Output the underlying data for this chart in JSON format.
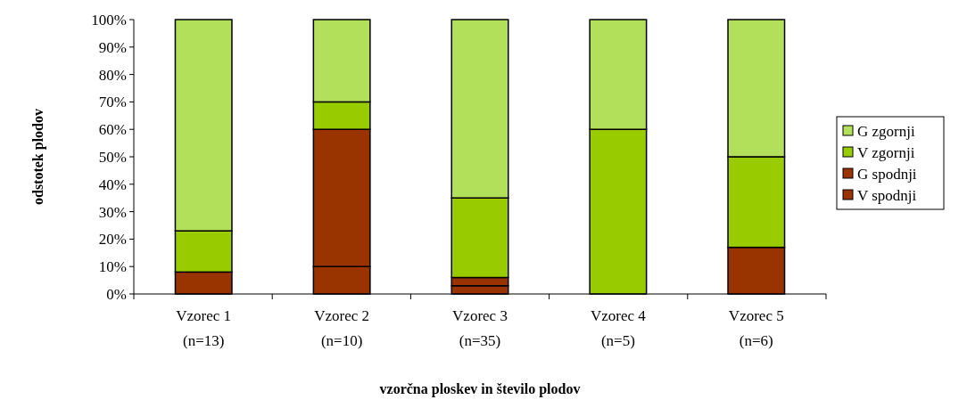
{
  "chart_data": {
    "type": "bar",
    "stacked": true,
    "xlabel": "vzorčna ploskev in število plodov",
    "ylabel": "odstotek plodov",
    "categories": [
      "Vzorec 1\n(n=13)",
      "Vzorec 2\n(n=10)",
      "Vzorec 3\n(n=35)",
      "Vzorec 4\n(n=5)",
      "Vzorec 5\n(n=6)"
    ],
    "series": [
      {
        "name": "V spodnji",
        "color": "#993300",
        "values": [
          0,
          10,
          3,
          0,
          0
        ]
      },
      {
        "name": "G spodnji",
        "color": "#993300",
        "values": [
          8,
          50,
          3,
          0,
          17
        ]
      },
      {
        "name": "V zgornji",
        "color": "#99cc00",
        "values": [
          15,
          10,
          29,
          60,
          33
        ]
      },
      {
        "name": "G zgornji",
        "color": "#b3e05a",
        "values": [
          77,
          30,
          65,
          40,
          50
        ]
      }
    ],
    "ylim": [
      0,
      100
    ],
    "yticks": [
      {
        "value": 0,
        "label": "0%"
      },
      {
        "value": 10,
        "label": "10%"
      },
      {
        "value": 20,
        "label": "20%"
      },
      {
        "value": 30,
        "label": "30%"
      },
      {
        "value": 40,
        "label": "40%"
      },
      {
        "value": 50,
        "label": "50%"
      },
      {
        "value": 60,
        "label": "60%"
      },
      {
        "value": 70,
        "label": "70%"
      },
      {
        "value": 80,
        "label": "80%"
      },
      {
        "value": 90,
        "label": "90%"
      },
      {
        "value": 100,
        "label": "100%"
      }
    ],
    "grid": false,
    "legend": "right"
  }
}
